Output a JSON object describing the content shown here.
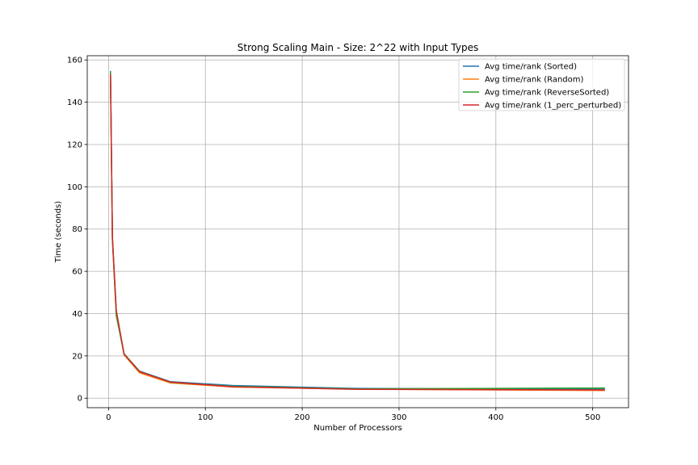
{
  "chart_data": {
    "type": "line",
    "title": "Strong Scaling Main - Size: 2^22 with Input Types",
    "xlabel": "Number of Processors",
    "ylabel": "Time (seconds)",
    "xlim": [
      -22,
      537
    ],
    "ylim": [
      -4.5,
      162
    ],
    "xticks": [
      0,
      100,
      200,
      300,
      400,
      500
    ],
    "yticks": [
      0,
      20,
      40,
      60,
      80,
      100,
      120,
      140,
      160
    ],
    "grid": true,
    "legend_position": "top-right",
    "x": [
      2,
      4,
      8,
      16,
      32,
      64,
      128,
      256,
      512
    ],
    "series": [
      {
        "name": "Avg time/rank (Sorted)",
        "color": "#1f77b4",
        "values": [
          154.5,
          76.0,
          40.5,
          21.0,
          12.8,
          7.8,
          6.0,
          4.6,
          4.3
        ]
      },
      {
        "name": "Avg time/rank (Random)",
        "color": "#ff7f0e",
        "values": [
          152.5,
          74.5,
          40.0,
          20.5,
          12.0,
          7.2,
          5.3,
          4.3,
          3.6
        ]
      },
      {
        "name": "Avg time/rank (ReverseSorted)",
        "color": "#2ca02c",
        "values": [
          154.0,
          75.5,
          39.0,
          21.0,
          12.6,
          7.5,
          5.6,
          4.4,
          4.8
        ]
      },
      {
        "name": "Avg time/rank (1_perc_perturbed)",
        "color": "#d62728",
        "values": [
          153.0,
          76.0,
          41.5,
          20.8,
          12.5,
          7.6,
          5.4,
          4.2,
          3.9
        ]
      }
    ]
  }
}
